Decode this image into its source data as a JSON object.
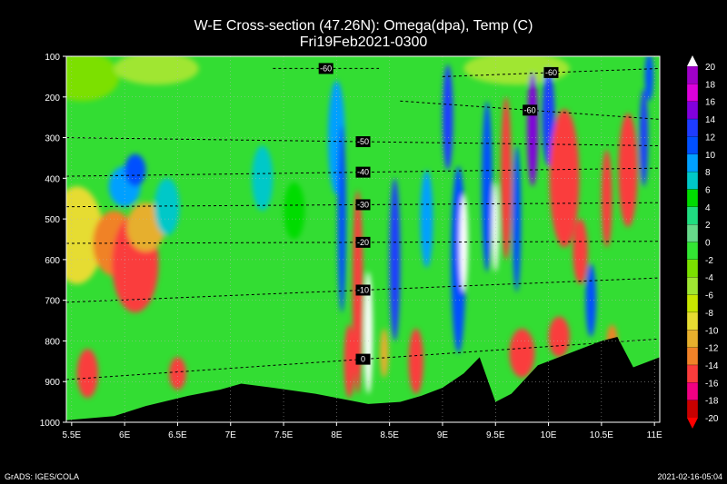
{
  "title_line1": "W-E Cross-section (47.26N): Omega(dpa), Temp (C)",
  "title_line2": "Fri19Feb2021-0300",
  "footer_left": "GrADS: IGES/COLA",
  "footer_right": "2021-02-16-05:04",
  "chart_data": {
    "type": "heatmap",
    "title": "W-E Cross-section (47.26N): Omega(dpa), Temp (C)",
    "subtitle": "Fri19Feb2021-0300",
    "x_ticks": [
      "5.5E",
      "6E",
      "6.5E",
      "7E",
      "7.5E",
      "8E",
      "8.5E",
      "9E",
      "9.5E",
      "10E",
      "10.5E",
      "11E"
    ],
    "x_range": [
      5.45,
      11.05
    ],
    "y_ticks": [
      100,
      200,
      300,
      400,
      500,
      600,
      700,
      800,
      900,
      1000
    ],
    "y_range": [
      100,
      1000
    ],
    "y_inverted": true,
    "grid": true,
    "colorbar": {
      "levels": [
        20,
        18,
        16,
        14,
        12,
        10,
        8,
        6,
        4,
        2,
        0,
        -2,
        -4,
        -6,
        -8,
        -10,
        -12,
        -14,
        -16,
        -18,
        -20
      ],
      "colors": [
        "#a000c8",
        "#dc00dc",
        "#8200dc",
        "#1e3cff",
        "#0050ff",
        "#00a0ff",
        "#00c8c8",
        "#00dc00",
        "#20dd80",
        "#66d98a",
        "#33e633",
        "#7be000",
        "#a0e632",
        "#c8e600",
        "#e6dc32",
        "#e6af2d",
        "#f08228",
        "#fa3c3c",
        "#f00082",
        "#c80000"
      ]
    },
    "temperature_contours": [
      {
        "label": "-60",
        "x": [
          7.4,
          8.4
        ],
        "y": [
          130,
          130
        ]
      },
      {
        "label": "-60",
        "x": [
          9.0,
          11.05
        ],
        "y": [
          150,
          130
        ]
      },
      {
        "label": "-60",
        "x": [
          8.6,
          11.05
        ],
        "y": [
          210,
          255
        ]
      },
      {
        "label": "-50",
        "x": [
          5.45,
          11.05
        ],
        "y": [
          300,
          320
        ]
      },
      {
        "label": "-40",
        "x": [
          5.45,
          11.05
        ],
        "y": [
          395,
          375
        ]
      },
      {
        "label": "-30",
        "x": [
          5.45,
          11.05
        ],
        "y": [
          470,
          460
        ]
      },
      {
        "label": "-20",
        "x": [
          5.45,
          11.05
        ],
        "y": [
          560,
          555
        ]
      },
      {
        "label": "-10",
        "x": [
          5.45,
          11.05
        ],
        "y": [
          705,
          645
        ]
      },
      {
        "label": "0",
        "x": [
          5.45,
          11.05
        ],
        "y": [
          895,
          795
        ]
      }
    ]
  }
}
